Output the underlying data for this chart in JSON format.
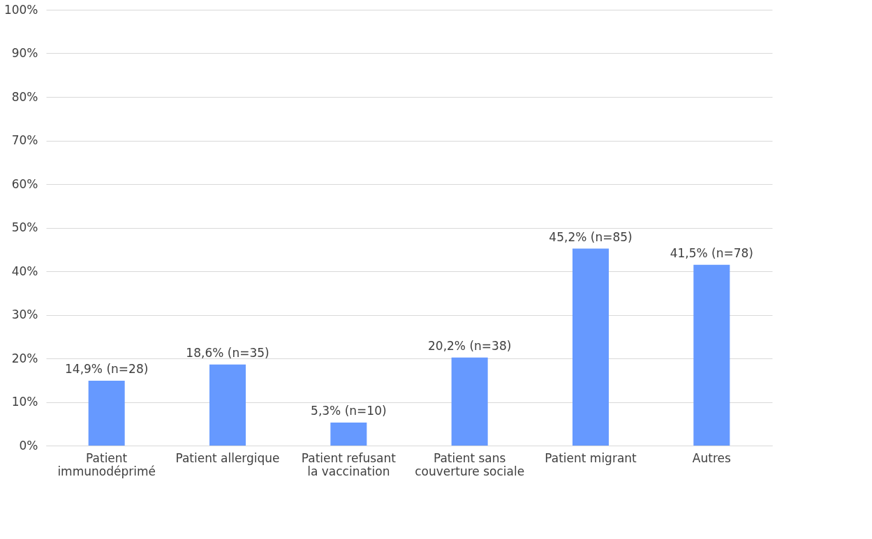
{
  "chart_data": {
    "type": "bar",
    "categories": [
      "Patient immunodéprimé",
      "Patient allergique",
      "Patient refusant la vaccination",
      "Patient sans couverture sociale",
      "Patient migrant",
      "Autres"
    ],
    "values": [
      14.9,
      18.6,
      5.3,
      20.2,
      45.2,
      41.5
    ],
    "value_labels": [
      "14,9% (n=28)",
      "18,6% (n=35)",
      "5,3% (n=10)",
      "20,2% (n=38)",
      "45,2% (n=85)",
      "41,5% (n=78)"
    ],
    "color": "#6699ff",
    "ylim": [
      0,
      100
    ],
    "yticks": [
      {
        "value": 0,
        "label": "0%"
      },
      {
        "value": 10,
        "label": "10%"
      },
      {
        "value": 20,
        "label": "20%"
      },
      {
        "value": 30,
        "label": "30%"
      },
      {
        "value": 40,
        "label": "40%"
      },
      {
        "value": 50,
        "label": "50%"
      },
      {
        "value": 60,
        "label": "60%"
      },
      {
        "value": 70,
        "label": "70%"
      },
      {
        "value": 80,
        "label": "80%"
      },
      {
        "value": 90,
        "label": "90%"
      },
      {
        "value": 100,
        "label": "100%"
      }
    ],
    "grid": true
  }
}
